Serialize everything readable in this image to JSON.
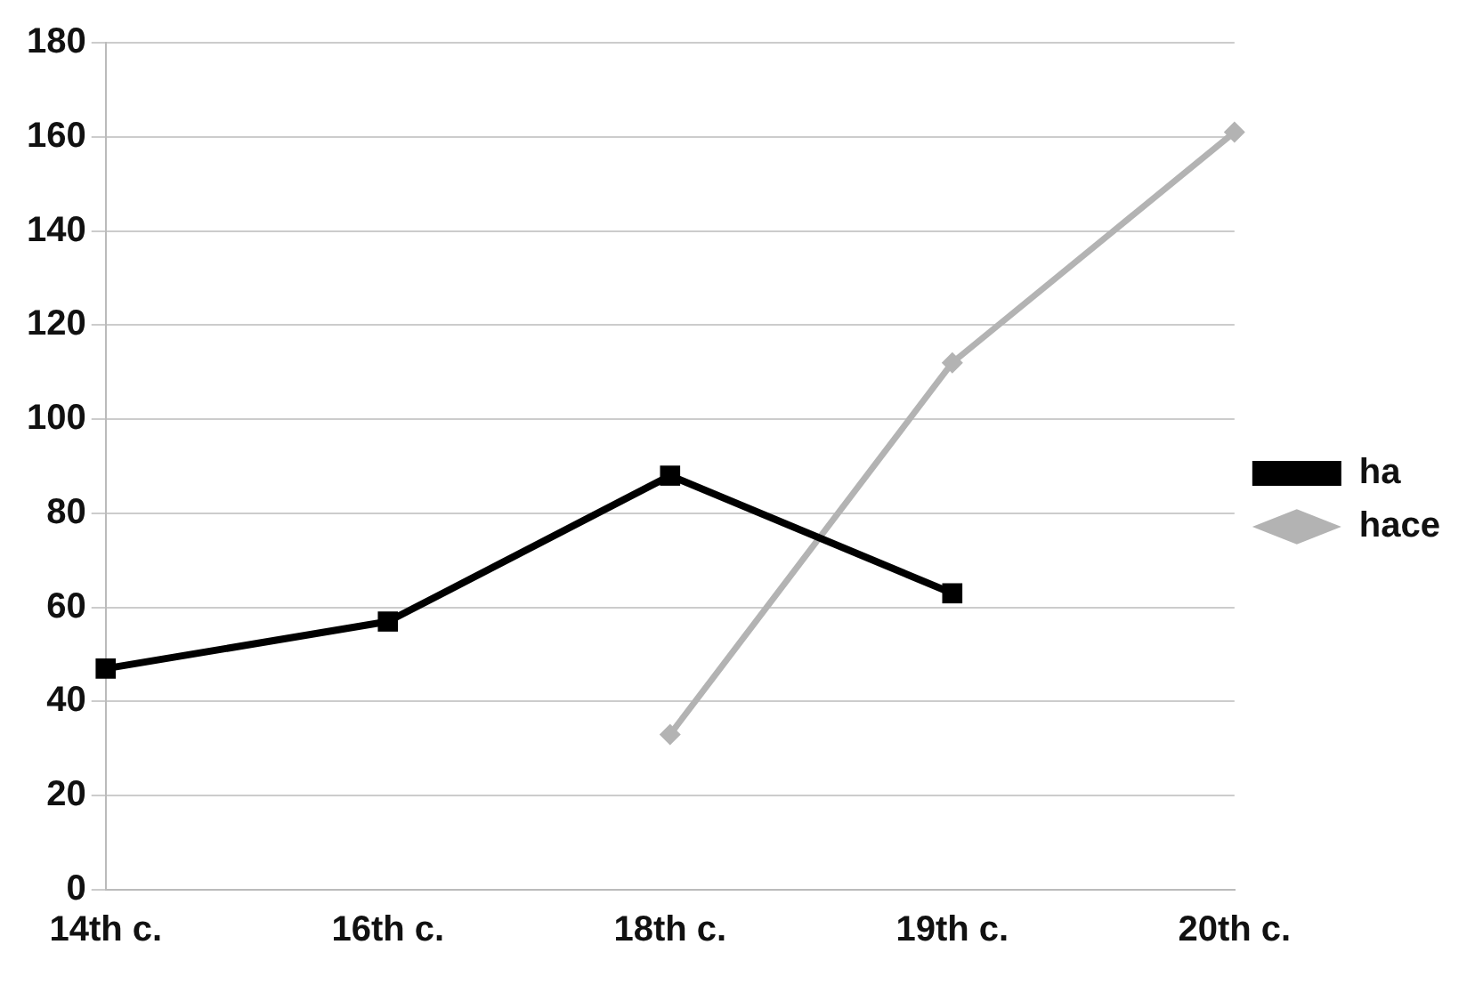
{
  "chart_data": {
    "type": "line",
    "categories": [
      "14th c.",
      "16th c.",
      "18th c.",
      "19th c.",
      "20th c."
    ],
    "series": [
      {
        "name": "ha",
        "color": "#000000",
        "marker": "square",
        "values": [
          47,
          57,
          88,
          63,
          null
        ]
      },
      {
        "name": "hace",
        "color": "#b3b3b3",
        "marker": "diamond",
        "values": [
          null,
          null,
          33,
          112,
          161
        ]
      }
    ],
    "ylim": [
      0,
      180
    ],
    "yticks": [
      0,
      20,
      40,
      60,
      80,
      100,
      120,
      140,
      160,
      180
    ],
    "grid": "y",
    "legend": "right",
    "line_style": "solid"
  }
}
